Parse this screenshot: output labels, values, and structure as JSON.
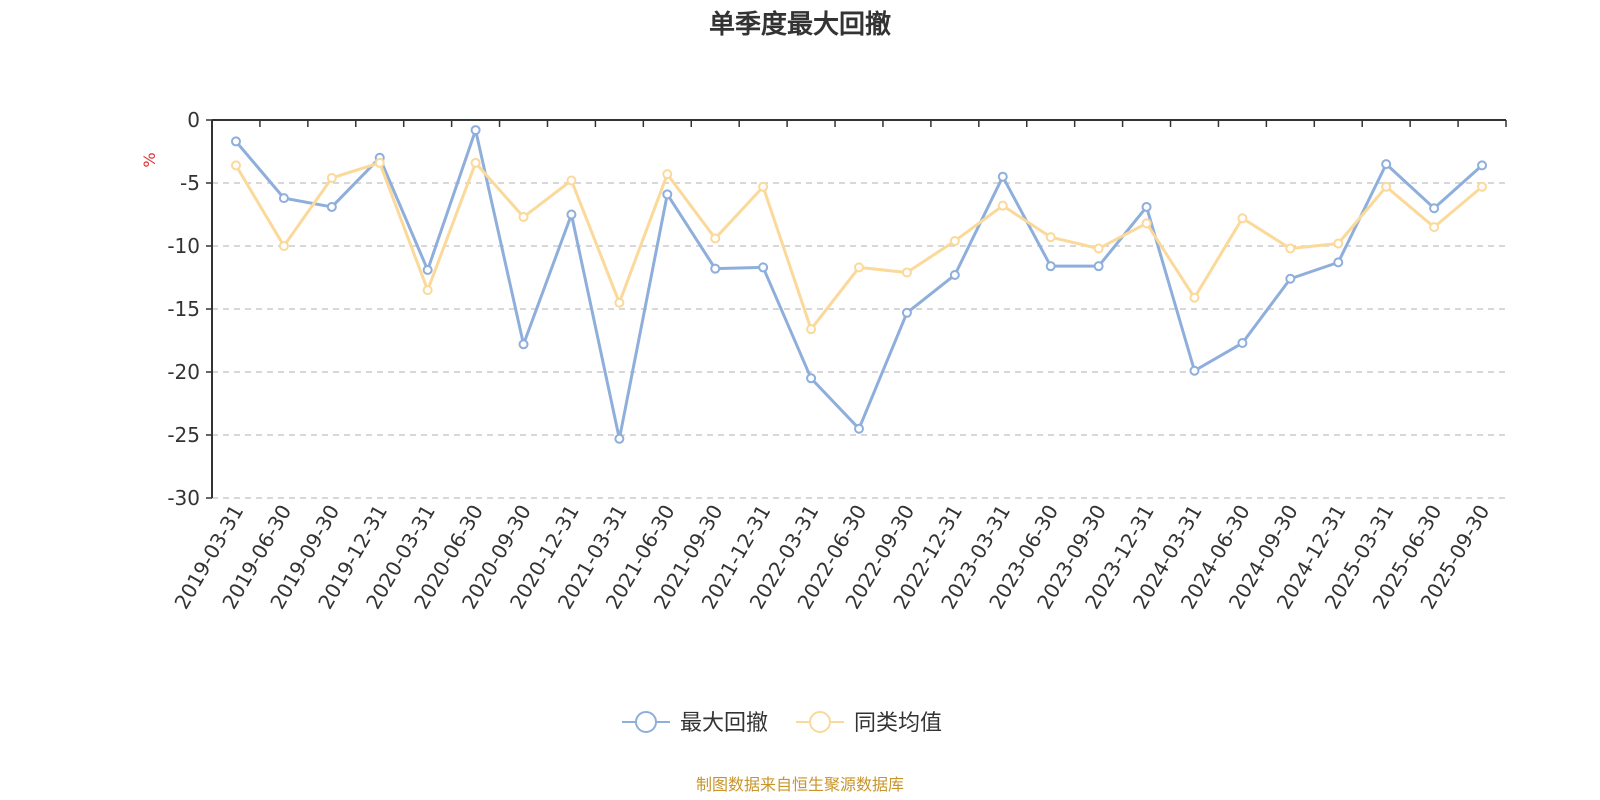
{
  "chart_data": {
    "type": "line",
    "title": "单季度最大回撤",
    "unit_label": "%",
    "ylim": [
      -30,
      0
    ],
    "yticks": [
      0,
      -5,
      -10,
      -15,
      -20,
      -25,
      -30
    ],
    "grid": true,
    "legend_position": "bottom-center",
    "categories": [
      "2019-03-31",
      "2019-06-30",
      "2019-09-30",
      "2019-12-31",
      "2020-03-31",
      "2020-06-30",
      "2020-09-30",
      "2020-12-31",
      "2021-03-31",
      "2021-06-30",
      "2021-09-30",
      "2021-12-31",
      "2022-03-31",
      "2022-06-30",
      "2022-09-30",
      "2022-12-31",
      "2023-03-31",
      "2023-06-30",
      "2023-09-30",
      "2023-12-31",
      "2024-03-31",
      "2024-06-30",
      "2024-09-30",
      "2024-12-31",
      "2025-03-31",
      "2025-06-30",
      "2025-09-30"
    ],
    "series": [
      {
        "name": "最大回撤",
        "color": "#8eaedb",
        "values": [
          -1.7,
          -6.2,
          -6.9,
          -3.0,
          -11.9,
          -0.8,
          -17.8,
          -7.5,
          -25.3,
          -5.9,
          -11.8,
          -11.7,
          -20.5,
          -24.5,
          -15.3,
          -12.3,
          -4.5,
          -11.6,
          -11.6,
          -6.9,
          -19.9,
          -17.7,
          -12.6,
          -11.3,
          -3.5,
          -7.0,
          -3.6
        ]
      },
      {
        "name": "同类均值",
        "color": "#fbd99a",
        "values": [
          -3.6,
          -10.0,
          -4.6,
          -3.4,
          -13.5,
          -3.4,
          -7.7,
          -4.8,
          -14.5,
          -4.3,
          -9.4,
          -5.3,
          -16.6,
          -11.7,
          -12.1,
          -9.6,
          -6.8,
          -9.3,
          -10.2,
          -8.2,
          -14.1,
          -7.8,
          -10.2,
          -9.8,
          -5.3,
          -8.5,
          -5.3
        ]
      }
    ]
  },
  "source_text": "制图数据来自恒生聚源数据库",
  "source_color": "#c8952a",
  "unit_color": "#e03030"
}
